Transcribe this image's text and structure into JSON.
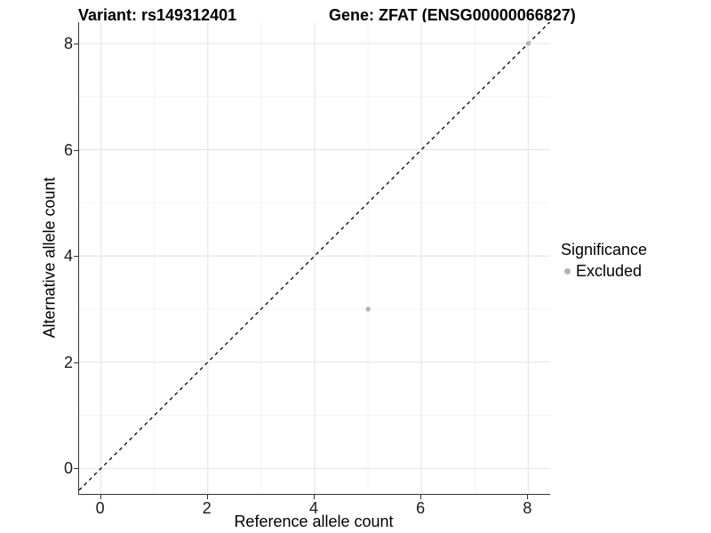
{
  "title": {
    "left": "Variant: rs149312401",
    "right": "Gene: ZFAT (ENSG00000066827)"
  },
  "chart_data": {
    "type": "scatter",
    "title": "Variant: rs149312401    Gene: ZFAT (ENSG00000066827)",
    "xlabel": "Reference allele count",
    "ylabel": "Alternative allele count",
    "xlim": [
      -0.41,
      8.41
    ],
    "ylim": [
      -0.48,
      8.4
    ],
    "xticks": [
      0,
      2,
      4,
      6,
      8
    ],
    "yticks": [
      0,
      2,
      4,
      6,
      8
    ],
    "minor_xticks": [
      1,
      3,
      5,
      7
    ],
    "minor_yticks": [
      1,
      3,
      5,
      7
    ],
    "grid": "major and minor, light gray on white",
    "identity_line": {
      "type": "dashed",
      "slope": 1,
      "intercept": 0,
      "color": "#000000"
    },
    "series": [
      {
        "name": "Excluded",
        "color": "#b3b3b3",
        "points": [
          [
            5,
            3
          ],
          [
            8,
            8
          ]
        ]
      }
    ],
    "legend": {
      "title": "Significance",
      "position": "right",
      "items": [
        {
          "label": "Excluded",
          "color": "#b3b3b3"
        }
      ]
    }
  },
  "colors": {
    "background": "#ffffff",
    "panel_background": "#ffffff",
    "grid_major": "#e6e6e6",
    "grid_minor": "#f3f3f3",
    "axis_line": "#333333",
    "tick_text": "#1a1a1a",
    "point": "#b3b3b3",
    "dashed_line": "#000000"
  }
}
